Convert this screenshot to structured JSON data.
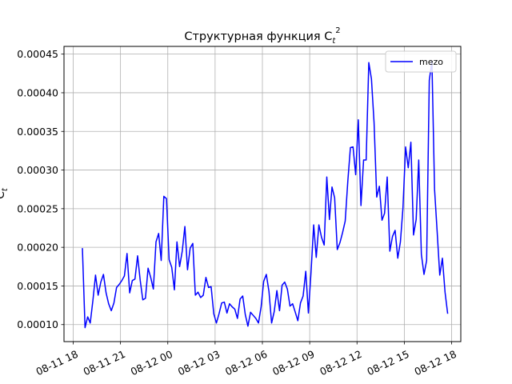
{
  "chart_data": {
    "type": "line",
    "title": "Структурная функция C",
    "title_sub": "t",
    "title_sup": "2",
    "xlabel": "",
    "ylabel": "C",
    "ylabel_sub": "t",
    "x_ticks": [
      "08-11 18",
      "08-11 21",
      "08-12 00",
      "08-12 03",
      "08-12 06",
      "08-12 09",
      "08-12 12",
      "08-12 15",
      "08-12 18"
    ],
    "y_ticks": [
      "0.00010",
      "0.00015",
      "0.00020",
      "0.00025",
      "0.00030",
      "0.00035",
      "0.00040",
      "0.00045"
    ],
    "xlim": [
      "08-11 17:25",
      "08-12 18:35"
    ],
    "ylim": [
      7.8e-05,
      0.00046
    ],
    "grid": true,
    "legend_position": "top-right",
    "series": [
      {
        "name": "mezo",
        "color": "#0000ff",
        "x": [
          "08-11 18:35",
          "08-11 18:45",
          "08-11 18:55",
          "08-11 19:05",
          "08-11 19:15",
          "08-11 19:25",
          "08-11 19:35",
          "08-11 19:45",
          "08-11 19:55",
          "08-11 20:05",
          "08-11 20:15",
          "08-11 20:25",
          "08-11 20:35",
          "08-11 20:45",
          "08-11 20:55",
          "08-11 21:05",
          "08-11 21:15",
          "08-11 21:25",
          "08-11 21:35",
          "08-11 21:45",
          "08-11 21:55",
          "08-11 22:05",
          "08-11 22:15",
          "08-11 22:25",
          "08-11 22:35",
          "08-11 22:45",
          "08-11 22:55",
          "08-11 23:05",
          "08-11 23:15",
          "08-11 23:25",
          "08-11 23:35",
          "08-11 23:45",
          "08-11 23:55",
          "08-12 00:05",
          "08-12 00:15",
          "08-12 00:25",
          "08-12 00:35",
          "08-12 00:45",
          "08-12 00:55",
          "08-12 01:05",
          "08-12 01:15",
          "08-12 01:25",
          "08-12 01:35",
          "08-12 01:45",
          "08-12 01:55",
          "08-12 02:05",
          "08-12 02:15",
          "08-12 02:25",
          "08-12 02:35",
          "08-12 02:45",
          "08-12 02:55",
          "08-12 03:05",
          "08-12 03:15",
          "08-12 03:25",
          "08-12 03:35",
          "08-12 03:45",
          "08-12 03:55",
          "08-12 04:05",
          "08-12 04:15",
          "08-12 04:25",
          "08-12 04:35",
          "08-12 04:45",
          "08-12 04:55",
          "08-12 05:05",
          "08-12 05:15",
          "08-12 05:25",
          "08-12 05:35",
          "08-12 05:45",
          "08-12 05:55",
          "08-12 06:05",
          "08-12 06:15",
          "08-12 06:25",
          "08-12 06:35",
          "08-12 06:45",
          "08-12 06:55",
          "08-12 07:05",
          "08-12 07:15",
          "08-12 07:25",
          "08-12 07:35",
          "08-12 07:45",
          "08-12 07:55",
          "08-12 08:05",
          "08-12 08:15",
          "08-12 08:25",
          "08-12 08:35",
          "08-12 08:45",
          "08-12 08:55",
          "08-12 09:05",
          "08-12 09:15",
          "08-12 09:25",
          "08-12 09:35",
          "08-12 09:45",
          "08-12 09:55",
          "08-12 10:05",
          "08-12 10:15",
          "08-12 10:25",
          "08-12 10:35",
          "08-12 10:45",
          "08-12 10:55",
          "08-12 11:05",
          "08-12 11:15",
          "08-12 11:25",
          "08-12 11:35",
          "08-12 11:45",
          "08-12 11:55",
          "08-12 12:05",
          "08-12 12:15",
          "08-12 12:25",
          "08-12 12:35",
          "08-12 12:45",
          "08-12 12:55",
          "08-12 13:05",
          "08-12 13:15",
          "08-12 13:25",
          "08-12 13:35",
          "08-12 13:45",
          "08-12 13:55",
          "08-12 14:05",
          "08-12 14:15",
          "08-12 14:25",
          "08-12 14:35",
          "08-12 14:45",
          "08-12 14:55",
          "08-12 15:05",
          "08-12 15:15",
          "08-12 15:25",
          "08-12 15:35",
          "08-12 15:45",
          "08-12 15:55",
          "08-12 16:05",
          "08-12 16:15",
          "08-12 16:25",
          "08-12 16:35",
          "08-12 16:45",
          "08-12 16:55",
          "08-12 17:05",
          "08-12 17:15",
          "08-12 17:25",
          "08-12 17:35",
          "08-12 17:45"
        ],
        "values": [
          0.000199,
          9.6e-05,
          0.00011,
          0.000102,
          0.000131,
          0.000164,
          0.000138,
          0.000155,
          0.000165,
          0.000141,
          0.000127,
          0.000118,
          0.000128,
          0.000148,
          0.000152,
          0.000157,
          0.000163,
          0.000192,
          0.000141,
          0.000157,
          0.000159,
          0.000189,
          0.000157,
          0.000132,
          0.000134,
          0.000173,
          0.000161,
          0.000146,
          0.000207,
          0.000218,
          0.000183,
          0.000266,
          0.000263,
          0.000184,
          0.000174,
          0.000145,
          0.000207,
          0.000175,
          0.000195,
          0.000227,
          0.000171,
          0.000199,
          0.000205,
          0.000138,
          0.000142,
          0.000135,
          0.000138,
          0.000161,
          0.000148,
          0.000149,
          0.000114,
          0.000102,
          0.000114,
          0.000128,
          0.000129,
          0.000115,
          0.000127,
          0.000123,
          0.00012,
          0.000108,
          0.000133,
          0.000137,
          0.000113,
          9.8e-05,
          0.000116,
          0.000112,
          0.000108,
          0.000102,
          0.000123,
          0.000156,
          0.000165,
          0.000143,
          0.000102,
          0.000117,
          0.000144,
          0.000118,
          0.000151,
          0.000155,
          0.000146,
          0.000124,
          0.000127,
          0.000116,
          0.000105,
          0.000128,
          0.000137,
          0.000169,
          0.000115,
          0.000168,
          0.000229,
          0.000187,
          0.000229,
          0.000213,
          0.000203,
          0.000291,
          0.000236,
          0.000278,
          0.000264,
          0.000197,
          0.000206,
          0.000219,
          0.000234,
          0.000286,
          0.000329,
          0.00033,
          0.000294,
          0.000365,
          0.000254,
          0.000313,
          0.000313,
          0.000439,
          0.000418,
          0.000361,
          0.000265,
          0.000279,
          0.000235,
          0.000244,
          0.000291,
          0.000195,
          0.000214,
          0.000222,
          0.000186,
          0.000207,
          0.000251,
          0.00033,
          0.000303,
          0.000336,
          0.000216,
          0.000236,
          0.000313,
          0.000191,
          0.000165,
          0.000183,
          0.000416,
          0.000441,
          0.000275,
          0.000221,
          0.000164,
          0.000186,
          0.000142,
          0.000114
        ]
      }
    ]
  }
}
